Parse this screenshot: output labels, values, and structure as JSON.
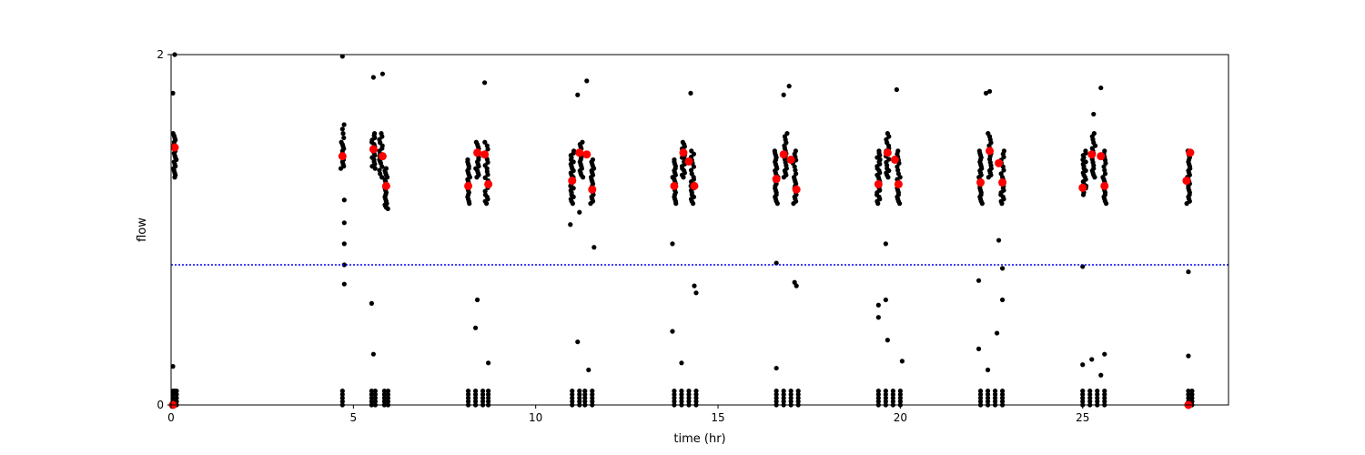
{
  "chart_data": {
    "type": "scatter",
    "xlabel": "time (hr)",
    "ylabel": "flow",
    "xlim": [
      0,
      29
    ],
    "ylim": [
      0,
      2
    ],
    "xticks": [
      0,
      5,
      10,
      15,
      20,
      25
    ],
    "yticks": [
      0,
      2
    ],
    "grid": false,
    "threshold": {
      "y": 0.8,
      "color": "#0000ff",
      "style": "dotted"
    },
    "colors": {
      "points": "#000000",
      "highlights": "#ff0000"
    },
    "clusters": [
      {
        "x": 0.1,
        "y": [
          1.55,
          1.5,
          1.45,
          1.4,
          1.35,
          1.3
        ]
      },
      {
        "x": 4.7,
        "y": [
          1.6,
          1.5,
          1.45,
          1.4,
          1.35
        ]
      },
      {
        "x": 5.55,
        "y": [
          1.55,
          1.5,
          1.45,
          1.4,
          1.35
        ]
      },
      {
        "x": 5.75,
        "y": [
          1.55,
          1.48,
          1.42,
          1.38,
          1.3
        ]
      },
      {
        "x": 5.9,
        "y": [
          1.35,
          1.3,
          1.25,
          1.2,
          1.15,
          1.12
        ]
      },
      {
        "x": 8.15,
        "y": [
          1.4,
          1.35,
          1.3,
          1.25,
          1.2,
          1.15
        ]
      },
      {
        "x": 8.4,
        "y": [
          1.5,
          1.45,
          1.4,
          1.35,
          1.3
        ]
      },
      {
        "x": 8.65,
        "y": [
          1.5,
          1.42,
          1.35,
          1.28,
          1.2,
          1.15
        ]
      },
      {
        "x": 11.0,
        "y": [
          1.45,
          1.4,
          1.35,
          1.3,
          1.25,
          1.2,
          1.15
        ]
      },
      {
        "x": 11.25,
        "y": [
          1.5,
          1.45,
          1.4,
          1.35,
          1.3
        ]
      },
      {
        "x": 11.55,
        "y": [
          1.4,
          1.35,
          1.3,
          1.25,
          1.2,
          1.15
        ]
      },
      {
        "x": 13.8,
        "y": [
          1.4,
          1.35,
          1.3,
          1.25,
          1.2,
          1.15
        ]
      },
      {
        "x": 14.05,
        "y": [
          1.5,
          1.45,
          1.4,
          1.35,
          1.3
        ]
      },
      {
        "x": 14.3,
        "y": [
          1.45,
          1.38,
          1.3,
          1.25,
          1.2,
          1.15
        ]
      },
      {
        "x": 16.6,
        "y": [
          1.45,
          1.4,
          1.35,
          1.3,
          1.25,
          1.2,
          1.15
        ]
      },
      {
        "x": 16.85,
        "y": [
          1.55,
          1.48,
          1.42,
          1.35,
          1.3
        ]
      },
      {
        "x": 17.1,
        "y": [
          1.45,
          1.38,
          1.3,
          1.25,
          1.2,
          1.15
        ]
      },
      {
        "x": 19.4,
        "y": [
          1.45,
          1.4,
          1.35,
          1.3,
          1.25,
          1.2,
          1.15
        ]
      },
      {
        "x": 19.65,
        "y": [
          1.55,
          1.48,
          1.42,
          1.35,
          1.3
        ]
      },
      {
        "x": 19.95,
        "y": [
          1.45,
          1.38,
          1.3,
          1.25,
          1.2,
          1.15
        ]
      },
      {
        "x": 22.2,
        "y": [
          1.45,
          1.4,
          1.35,
          1.3,
          1.25,
          1.2,
          1.15
        ]
      },
      {
        "x": 22.45,
        "y": [
          1.55,
          1.48,
          1.42,
          1.35,
          1.3
        ]
      },
      {
        "x": 22.8,
        "y": [
          1.45,
          1.38,
          1.3,
          1.25,
          1.2,
          1.15
        ]
      },
      {
        "x": 25.05,
        "y": [
          1.45,
          1.4,
          1.35,
          1.3,
          1.25,
          1.2
        ]
      },
      {
        "x": 25.3,
        "y": [
          1.55,
          1.48,
          1.42,
          1.35,
          1.3
        ]
      },
      {
        "x": 25.6,
        "y": [
          1.45,
          1.38,
          1.3,
          1.25,
          1.2,
          1.15
        ]
      },
      {
        "x": 27.9,
        "y": [
          1.45,
          1.4,
          1.35,
          1.3,
          1.25,
          1.2,
          1.15
        ]
      }
    ],
    "outliers": [
      {
        "x": 0.05,
        "y": 1.78
      },
      {
        "x": 0.1,
        "y": 2.0
      },
      {
        "x": 0.05,
        "y": 0.22
      },
      {
        "x": 0.1,
        "y": 0.08
      },
      {
        "x": 4.7,
        "y": 1.99
      },
      {
        "x": 4.75,
        "y": 1.17
      },
      {
        "x": 4.75,
        "y": 1.04
      },
      {
        "x": 4.75,
        "y": 0.92
      },
      {
        "x": 4.75,
        "y": 0.8
      },
      {
        "x": 4.75,
        "y": 0.69
      },
      {
        "x": 5.55,
        "y": 1.87
      },
      {
        "x": 5.8,
        "y": 1.89
      },
      {
        "x": 5.5,
        "y": 0.58
      },
      {
        "x": 5.55,
        "y": 0.29
      },
      {
        "x": 8.4,
        "y": 0.6
      },
      {
        "x": 8.35,
        "y": 0.44
      },
      {
        "x": 8.6,
        "y": 1.84
      },
      {
        "x": 8.7,
        "y": 0.24
      },
      {
        "x": 11.15,
        "y": 1.77
      },
      {
        "x": 11.4,
        "y": 1.85
      },
      {
        "x": 10.95,
        "y": 1.03
      },
      {
        "x": 11.2,
        "y": 1.1
      },
      {
        "x": 11.6,
        "y": 0.9
      },
      {
        "x": 11.15,
        "y": 0.36
      },
      {
        "x": 11.45,
        "y": 0.2
      },
      {
        "x": 13.75,
        "y": 0.92
      },
      {
        "x": 13.75,
        "y": 0.42
      },
      {
        "x": 14.25,
        "y": 1.78
      },
      {
        "x": 14.35,
        "y": 0.68
      },
      {
        "x": 14.4,
        "y": 0.64
      },
      {
        "x": 14.0,
        "y": 0.24
      },
      {
        "x": 16.6,
        "y": 0.81
      },
      {
        "x": 16.6,
        "y": 0.21
      },
      {
        "x": 16.8,
        "y": 1.77
      },
      {
        "x": 16.95,
        "y": 1.82
      },
      {
        "x": 17.1,
        "y": 0.7
      },
      {
        "x": 17.15,
        "y": 0.68
      },
      {
        "x": 19.4,
        "y": 0.57
      },
      {
        "x": 19.4,
        "y": 0.5
      },
      {
        "x": 19.6,
        "y": 0.6
      },
      {
        "x": 19.65,
        "y": 0.37
      },
      {
        "x": 19.6,
        "y": 0.92
      },
      {
        "x": 19.9,
        "y": 1.8
      },
      {
        "x": 20.05,
        "y": 0.25
      },
      {
        "x": 22.15,
        "y": 0.71
      },
      {
        "x": 22.15,
        "y": 0.32
      },
      {
        "x": 22.35,
        "y": 1.78
      },
      {
        "x": 22.45,
        "y": 1.79
      },
      {
        "x": 22.7,
        "y": 0.94
      },
      {
        "x": 22.8,
        "y": 0.78
      },
      {
        "x": 22.8,
        "y": 0.6
      },
      {
        "x": 22.65,
        "y": 0.41
      },
      {
        "x": 22.4,
        "y": 0.2
      },
      {
        "x": 25.0,
        "y": 0.79
      },
      {
        "x": 25.0,
        "y": 0.23
      },
      {
        "x": 25.25,
        "y": 0.26
      },
      {
        "x": 25.3,
        "y": 1.66
      },
      {
        "x": 25.5,
        "y": 1.81
      },
      {
        "x": 25.6,
        "y": 0.29
      },
      {
        "x": 25.5,
        "y": 0.17
      },
      {
        "x": 27.9,
        "y": 0.76
      },
      {
        "x": 27.9,
        "y": 0.28
      }
    ],
    "zero_cluster_x": [
      0.05,
      0.15,
      4.7,
      5.5,
      5.6,
      5.85,
      5.95,
      8.15,
      8.35,
      8.55,
      8.7,
      11.0,
      11.2,
      11.35,
      11.55,
      13.8,
      14.0,
      14.2,
      14.4,
      16.6,
      16.8,
      17.0,
      17.2,
      19.4,
      19.6,
      19.8,
      20.0,
      22.2,
      22.4,
      22.6,
      22.8,
      25.0,
      25.2,
      25.4,
      25.6,
      27.9,
      28.0
    ],
    "zero_cluster_y": [
      0.0,
      0.02,
      0.04,
      0.06,
      0.08
    ],
    "highlights": [
      {
        "x": 0.1,
        "y": 1.47
      },
      {
        "x": 0.05,
        "y": 0.0
      },
      {
        "x": 4.7,
        "y": 1.42
      },
      {
        "x": 5.55,
        "y": 1.46
      },
      {
        "x": 5.8,
        "y": 1.42
      },
      {
        "x": 5.9,
        "y": 1.25
      },
      {
        "x": 8.15,
        "y": 1.25
      },
      {
        "x": 8.4,
        "y": 1.44
      },
      {
        "x": 8.6,
        "y": 1.43
      },
      {
        "x": 8.7,
        "y": 1.26
      },
      {
        "x": 11.0,
        "y": 1.28
      },
      {
        "x": 11.2,
        "y": 1.44
      },
      {
        "x": 11.4,
        "y": 1.43
      },
      {
        "x": 11.55,
        "y": 1.23
      },
      {
        "x": 13.8,
        "y": 1.25
      },
      {
        "x": 14.05,
        "y": 1.44
      },
      {
        "x": 14.2,
        "y": 1.39
      },
      {
        "x": 14.35,
        "y": 1.25
      },
      {
        "x": 16.6,
        "y": 1.29
      },
      {
        "x": 16.8,
        "y": 1.43
      },
      {
        "x": 17.0,
        "y": 1.4
      },
      {
        "x": 17.15,
        "y": 1.23
      },
      {
        "x": 19.4,
        "y": 1.26
      },
      {
        "x": 19.65,
        "y": 1.44
      },
      {
        "x": 19.85,
        "y": 1.4
      },
      {
        "x": 19.95,
        "y": 1.26
      },
      {
        "x": 22.2,
        "y": 1.27
      },
      {
        "x": 22.45,
        "y": 1.45
      },
      {
        "x": 22.7,
        "y": 1.38
      },
      {
        "x": 22.8,
        "y": 1.27
      },
      {
        "x": 25.0,
        "y": 1.24
      },
      {
        "x": 25.25,
        "y": 1.43
      },
      {
        "x": 25.5,
        "y": 1.42
      },
      {
        "x": 25.6,
        "y": 1.25
      },
      {
        "x": 27.85,
        "y": 1.28
      },
      {
        "x": 27.95,
        "y": 1.44
      },
      {
        "x": 27.9,
        "y": 0.0
      }
    ]
  }
}
